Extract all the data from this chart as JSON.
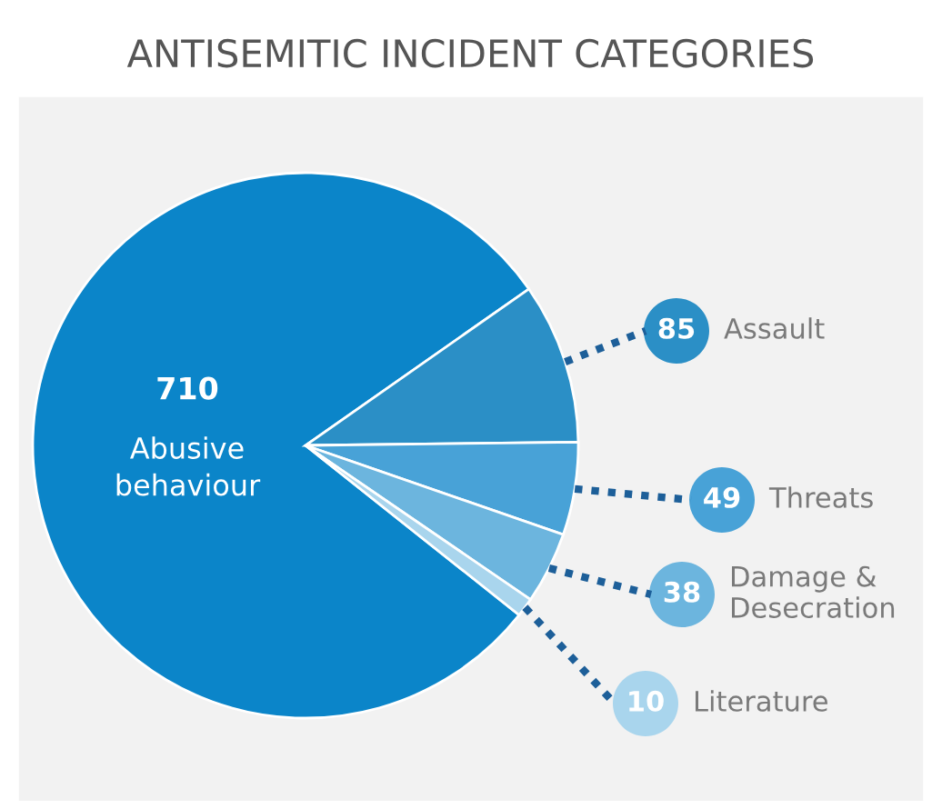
{
  "chart_data": {
    "type": "pie",
    "title": "ANTISEMITIC INCIDENT CATEGORIES",
    "categories": [
      "Abusive\nbehaviour",
      "Assault",
      "Threats",
      "Damage &\nDesecration",
      "Literature"
    ],
    "values": [
      710,
      85,
      49,
      38,
      10
    ],
    "colors": [
      "#0b85c9",
      "#2b8fc6",
      "#48a2d7",
      "#6cb5de",
      "#a9d5ed"
    ],
    "data_labels": true,
    "legend": "right"
  }
}
